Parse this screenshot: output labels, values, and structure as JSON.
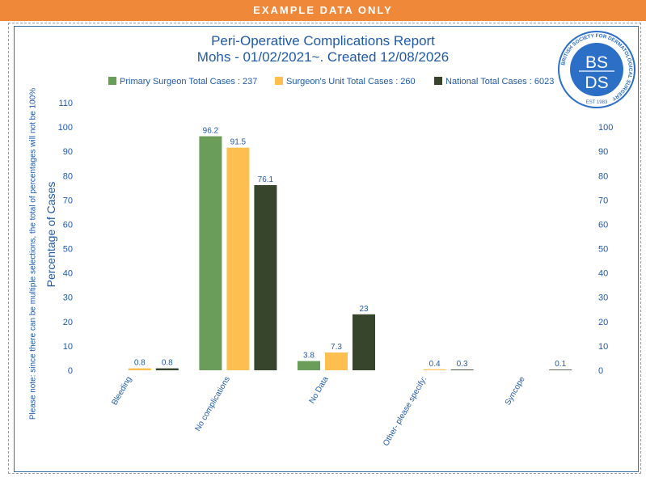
{
  "banner": "EXAMPLE DATA ONLY",
  "title_line1": "Peri-Operative Complications Report",
  "title_line2": "Mohs - 01/02/2021~. Created 12/08/2026",
  "side_note": "Please note: since there can be multiple selections, the total of percentages will not be 100%",
  "logo": {
    "abbr_top": "BS",
    "abbr_bottom": "DS",
    "ring_text": "BRITISH SOCIETY FOR DERMATOLOGICAL SURGERY",
    "est": "EST 1983"
  },
  "colors": {
    "primary": "#6a9c5a",
    "unit": "#fdbf50",
    "national": "#38452d",
    "text": "#1f5aa8",
    "banner": "#f0883a"
  },
  "chart_data": {
    "type": "bar",
    "ylabel": "Percentage of Cases",
    "ylim": [
      0,
      110
    ],
    "yticks": [
      0,
      10,
      20,
      30,
      40,
      50,
      60,
      70,
      80,
      90,
      100,
      110
    ],
    "legend_position": "top",
    "categories": [
      "Bleeding",
      "No complications",
      "No Data",
      "Other- please specify:",
      "Syncope"
    ],
    "series": [
      {
        "name": "Primary Surgeon Total Cases : 237",
        "color": "#6a9c5a",
        "values": [
          null,
          96.2,
          3.8,
          null,
          null
        ]
      },
      {
        "name": "Surgeon's Unit Total Cases : 260",
        "color": "#fdbf50",
        "values": [
          0.8,
          91.5,
          7.3,
          0.4,
          null
        ]
      },
      {
        "name": "National Total Cases : 6023",
        "color": "#38452d",
        "values": [
          0.8,
          76.1,
          23,
          0.3,
          0.1
        ]
      }
    ]
  }
}
